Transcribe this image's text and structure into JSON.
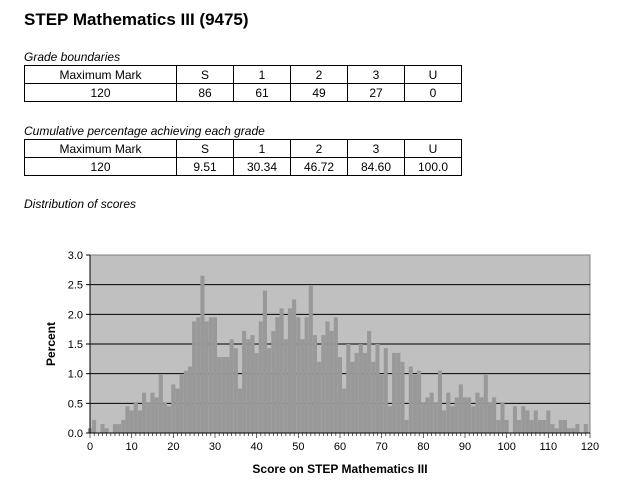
{
  "title": "STEP Mathematics III (9475)",
  "grade_boundaries": {
    "caption": "Grade boundaries",
    "headers": [
      "Maximum Mark",
      "S",
      "1",
      "2",
      "3",
      "U"
    ],
    "values": [
      "120",
      "86",
      "61",
      "49",
      "27",
      "0"
    ]
  },
  "cumulative": {
    "caption": "Cumulative percentage achieving each grade",
    "headers": [
      "Maximum Mark",
      "S",
      "1",
      "2",
      "3",
      "U"
    ],
    "values": [
      "120",
      "9.51",
      "30.34",
      "46.72",
      "84.60",
      "100.0"
    ]
  },
  "distribution_caption": "Distribution of scores",
  "chart_data": {
    "type": "bar",
    "xlabel": "Score on STEP Mathematics III",
    "ylabel": "Percent",
    "xlim": [
      0,
      120
    ],
    "ylim": [
      0,
      3.0
    ],
    "xticks": [
      "0",
      "10",
      "20",
      "30",
      "40",
      "50",
      "60",
      "70",
      "80",
      "90",
      "100",
      "110",
      "120"
    ],
    "yticks": [
      "0.0",
      "0.5",
      "1.0",
      "1.5",
      "2.0",
      "2.5",
      "3.0"
    ],
    "grid": true,
    "bar_color": "#999999",
    "plot_background": "#c0c0c0",
    "x": [
      0,
      1,
      2,
      3,
      4,
      5,
      6,
      7,
      8,
      9,
      10,
      11,
      12,
      13,
      14,
      15,
      16,
      17,
      18,
      19,
      20,
      21,
      22,
      23,
      24,
      25,
      26,
      27,
      28,
      29,
      30,
      31,
      32,
      33,
      34,
      35,
      36,
      37,
      38,
      39,
      40,
      41,
      42,
      43,
      44,
      45,
      46,
      47,
      48,
      49,
      50,
      51,
      52,
      53,
      54,
      55,
      56,
      57,
      58,
      59,
      60,
      61,
      62,
      63,
      64,
      65,
      66,
      67,
      68,
      69,
      70,
      71,
      72,
      73,
      74,
      75,
      76,
      77,
      78,
      79,
      80,
      81,
      82,
      83,
      84,
      85,
      86,
      87,
      88,
      89,
      90,
      91,
      92,
      93,
      94,
      95,
      96,
      97,
      98,
      99,
      100,
      101,
      102,
      103,
      104,
      105,
      106,
      107,
      108,
      109,
      110,
      111,
      112,
      113,
      114,
      115,
      116,
      117,
      118,
      119,
      120
    ],
    "values": [
      0.08,
      0.22,
      0.0,
      0.15,
      0.08,
      0.0,
      0.15,
      0.15,
      0.22,
      0.45,
      0.38,
      0.52,
      0.38,
      0.68,
      0.52,
      0.68,
      0.6,
      0.98,
      0.52,
      0.45,
      0.82,
      0.75,
      0.98,
      1.05,
      1.12,
      1.88,
      1.95,
      2.65,
      1.88,
      1.95,
      1.95,
      1.28,
      1.28,
      1.28,
      1.58,
      1.43,
      0.75,
      1.72,
      1.58,
      1.65,
      1.35,
      1.88,
      2.4,
      1.43,
      1.72,
      1.95,
      2.1,
      1.58,
      2.1,
      2.25,
      1.95,
      1.58,
      1.95,
      2.48,
      1.65,
      1.2,
      1.65,
      1.88,
      1.72,
      1.95,
      1.28,
      0.75,
      1.5,
      1.2,
      1.35,
      1.5,
      1.35,
      1.72,
      1.2,
      1.5,
      0.98,
      1.43,
      0.45,
      1.35,
      1.35,
      1.2,
      0.22,
      1.12,
      0.98,
      1.05,
      0.52,
      0.6,
      0.68,
      0.52,
      1.05,
      0.38,
      0.68,
      0.45,
      0.6,
      0.82,
      0.6,
      0.6,
      0.45,
      0.68,
      0.6,
      0.98,
      0.52,
      0.6,
      0.22,
      0.52,
      0.22,
      0.0,
      0.45,
      0.22,
      0.45,
      0.38,
      0.22,
      0.38,
      0.22,
      0.22,
      0.38,
      0.15,
      0.08,
      0.22,
      0.22,
      0.08,
      0.08,
      0.15,
      0.0,
      0.15,
      0.0
    ]
  }
}
